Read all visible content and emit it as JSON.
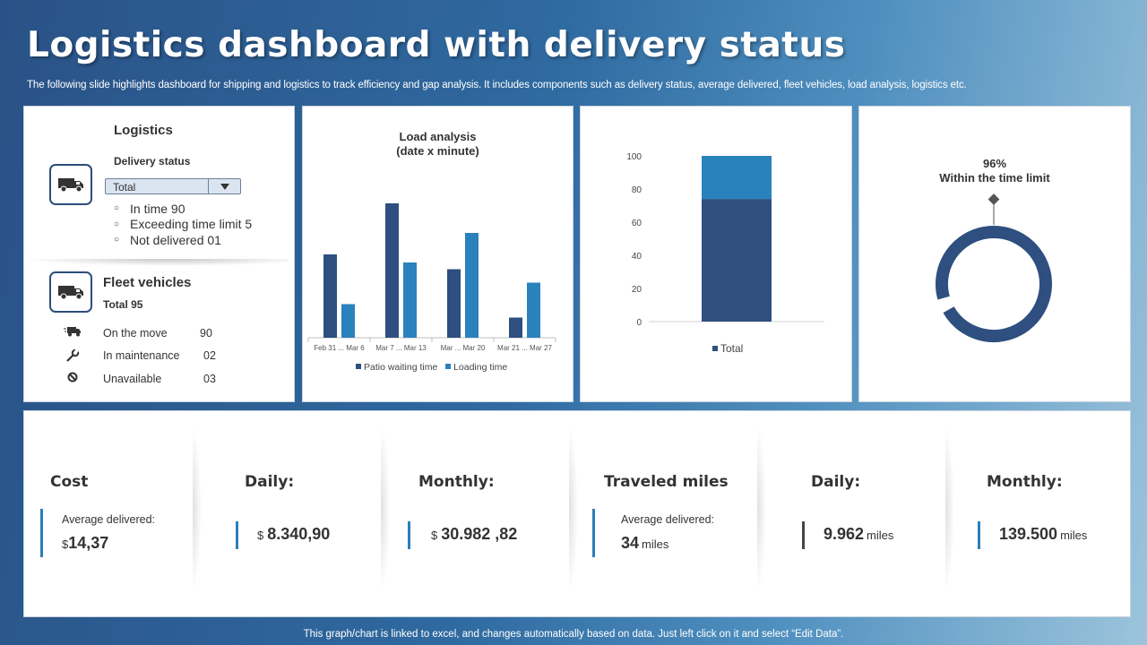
{
  "header": {
    "title": "Logistics dashboard with delivery status",
    "subtitle": "The following slide highlights dashboard for shipping and logistics to track efficiency and gap analysis. It includes components such as delivery status, average delivered, fleet vehicles, load analysis, logistics etc."
  },
  "logistics": {
    "heading": "Logistics",
    "delivery_status_label": "Delivery status",
    "dropdown_value": "Total",
    "status_items": [
      "In time 90",
      "Exceeding time limit 5",
      "Not delivered 01"
    ]
  },
  "fleet": {
    "heading": "Fleet vehicles",
    "total": "Total  95",
    "rows": [
      {
        "label": "On the move",
        "value": "90",
        "icon": "moving-truck-icon"
      },
      {
        "label": "In maintenance",
        "value": "02",
        "icon": "wrench-icon"
      },
      {
        "label": "Unavailable",
        "value": "03",
        "icon": "prohibited-icon"
      }
    ]
  },
  "colors": {
    "series_dark": "#2e4f7f",
    "series_light": "#2a82bd",
    "accent_bar": "#2a7fb8",
    "dark_bar": "#444444"
  },
  "chart_data": [
    {
      "type": "bar",
      "title": "Load analysis\n(date x minute)",
      "title_lines": [
        "Load analysis",
        "(date x minute)"
      ],
      "categories": [
        "Feb 31 ... Mar 6",
        "Mar 7 ... Mar 13",
        "Mar ... Mar 20",
        "Mar 21 ... Mar 27"
      ],
      "series": [
        {
          "name": "Patio waiting time",
          "values": [
            62,
            100,
            51,
            15
          ]
        },
        {
          "name": "Loading time",
          "values": [
            25,
            56,
            78,
            41
          ]
        }
      ],
      "ylim": [
        0,
        100
      ],
      "legend": "bottom"
    },
    {
      "type": "bar",
      "stacked": true,
      "categories": [
        "Total"
      ],
      "series": [
        {
          "name": "Total",
          "values": [
            74
          ]
        },
        {
          "name": "",
          "values": [
            26
          ]
        }
      ],
      "ylim": [
        0,
        100
      ],
      "yticks": [
        0,
        20,
        40,
        60,
        80,
        100
      ],
      "legend": "bottom"
    },
    {
      "type": "pie",
      "title": "96%\nWithin  the time limit",
      "title_lines": [
        "96%",
        "Within  the time limit"
      ],
      "values": [
        96,
        4
      ],
      "donut": true
    }
  ],
  "metrics": [
    {
      "heading": "Cost",
      "small": "Average  delivered:",
      "currency": "$",
      "value": "14,37",
      "unit": "",
      "bar": "accent"
    },
    {
      "heading": "Daily:",
      "small": "",
      "currency": "$",
      "value": "8.340,90",
      "unit": "",
      "bar": "accent"
    },
    {
      "heading": "Monthly:",
      "small": "",
      "currency": "$",
      "value": "30.982 ,82",
      "unit": "",
      "bar": "accent"
    },
    {
      "heading": "Traveled miles",
      "small": "Average  delivered:",
      "currency": "",
      "value": "34",
      "unit": "miles",
      "bar": "accent"
    },
    {
      "heading": "Daily:",
      "small": "",
      "currency": "",
      "value": "9.962",
      "unit": "miles",
      "bar": "dark"
    },
    {
      "heading": "Monthly:",
      "small": "",
      "currency": "",
      "value": "139.500",
      "unit": "miles",
      "bar": "accent"
    }
  ],
  "footer": "This graph/chart is linked to excel,  and changes automatically based on data. Just left click on it and select “Edit Data”."
}
